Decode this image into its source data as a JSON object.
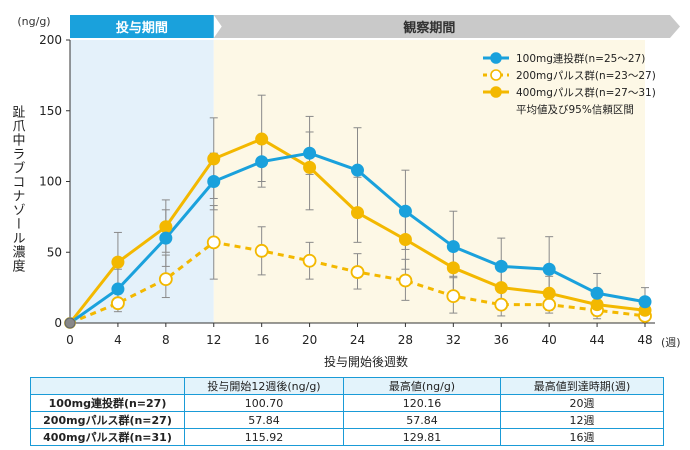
{
  "chart_data": {
    "type": "line",
    "y_unit": "(ng/g)",
    "x_unit": "(週)",
    "ylabel": "趾爪中ラブコナゾール濃度",
    "xlabel": "投与開始後週数",
    "ylim": [
      0,
      200
    ],
    "xlim": [
      0,
      48
    ],
    "x_ticks": [
      0,
      4,
      8,
      12,
      16,
      20,
      24,
      28,
      32,
      36,
      40,
      44,
      48
    ],
    "y_ticks": [
      0,
      50,
      100,
      150,
      200
    ],
    "periods": [
      {
        "label": "投与期間",
        "start": 0,
        "end": 12,
        "fill": "#e4f1fa",
        "header": "#1aa1dc"
      },
      {
        "label": "観察期間",
        "start": 12,
        "end": 48,
        "fill": "#fdf8e6",
        "header": "#c9c9c9"
      }
    ],
    "x": [
      0,
      4,
      8,
      12,
      16,
      20,
      24,
      28,
      32,
      36,
      40,
      44,
      48
    ],
    "series": [
      {
        "name": "100mg連投群(n=25〜27)",
        "color": "#1aa1dc",
        "style": "solid",
        "marker": "filled",
        "values": [
          0,
          24,
          60,
          100,
          114,
          120,
          108,
          79,
          54,
          40,
          38,
          21,
          15
        ],
        "err_low": [
          0,
          12,
          40,
          80,
          96,
          105,
          78,
          52,
          33,
          22,
          20,
          11,
          7
        ],
        "err_high": [
          0,
          38,
          80,
          120,
          130,
          135,
          138,
          108,
          79,
          60,
          61,
          35,
          25
        ]
      },
      {
        "name": "200mgパルス群(n=23〜27)",
        "color": "#f3b800",
        "style": "dashed",
        "marker": "open",
        "values": [
          0,
          14,
          31,
          57,
          51,
          44,
          36,
          30,
          19,
          13,
          13,
          9,
          5
        ],
        "err_low": [
          0,
          8,
          18,
          31,
          34,
          31,
          24,
          16,
          7,
          5,
          7,
          3,
          2
        ],
        "err_high": [
          0,
          21,
          48,
          83,
          68,
          57,
          49,
          45,
          32,
          22,
          21,
          16,
          8
        ]
      },
      {
        "name": "400mgパルス群(n=27〜31)",
        "color": "#f3b800",
        "style": "solid",
        "marker": "filled",
        "values": [
          0,
          43,
          68,
          116,
          130,
          110,
          78,
          59,
          39,
          25,
          21,
          13,
          9
        ],
        "err_low": [
          0,
          22,
          50,
          88,
          100,
          80,
          57,
          38,
          21,
          12,
          9,
          5,
          3
        ],
        "err_high": [
          0,
          64,
          87,
          145,
          161,
          146,
          103,
          80,
          57,
          38,
          33,
          22,
          15
        ]
      }
    ],
    "legend_note": "平均値及び95%信頼区間"
  },
  "table": {
    "headers": [
      "",
      "投与開始12週後(ng/g)",
      "最高値(ng/g)",
      "最高値到達時期(週)"
    ],
    "rows": [
      {
        "group": "100mg連投群(n=27)",
        "w12": "100.70",
        "max": "120.16",
        "tmax": "20週"
      },
      {
        "group": "200mgパルス群(n=27)",
        "w12": "57.84",
        "max": "57.84",
        "tmax": "12週"
      },
      {
        "group": "400mgパルス群(n=31)",
        "w12": "115.92",
        "max": "129.81",
        "tmax": "16週"
      }
    ]
  }
}
